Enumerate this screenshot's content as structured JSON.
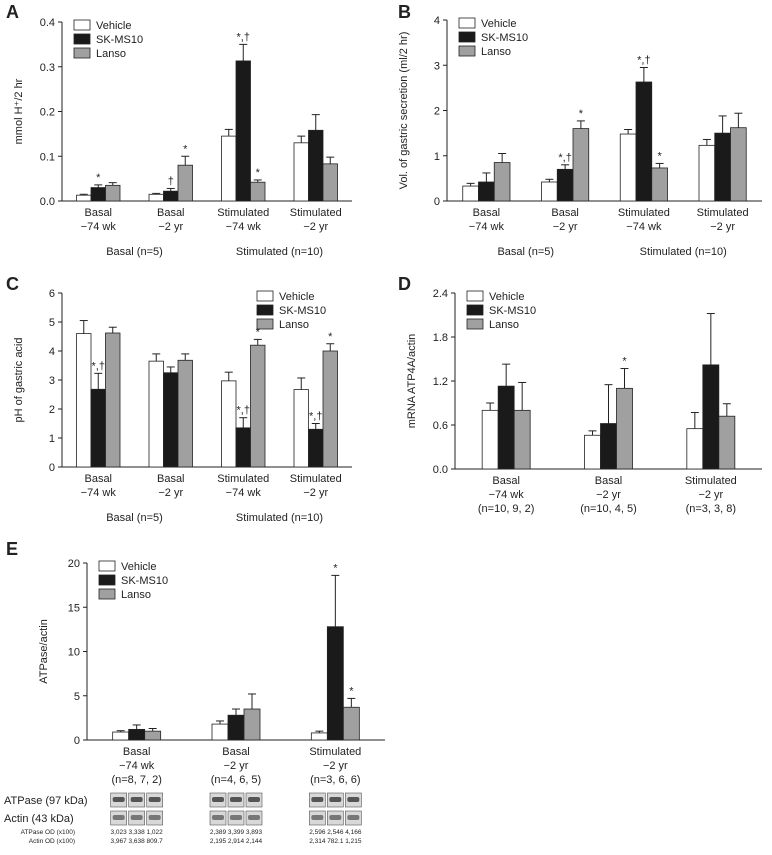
{
  "chart_data": [
    {
      "type": "bar",
      "panel": "A",
      "ylabel": "mmol H⁺/2 hr",
      "legend": "upper left",
      "categories": [
        [
          "Basal",
          "−74 wk"
        ],
        [
          "Basal",
          "−2 yr"
        ],
        [
          "Stimulated",
          "−74 wk"
        ],
        [
          "Stimulated",
          "−2 yr"
        ]
      ],
      "groups": [
        "Basal (n=5)",
        "Stimulated (n=10)"
      ],
      "ylim": [
        0,
        0.4
      ],
      "yticks": [
        {
          "value": 0,
          "label": "0.0"
        },
        0.1,
        0.2,
        0.3,
        0.4
      ],
      "series": [
        {
          "name": "Vehicle",
          "color": "#ffffff",
          "values": [
            0.013,
            0.015,
            0.145,
            0.13
          ],
          "errors": [
            0.002,
            0.002,
            0.015,
            0.015
          ],
          "marks": [
            null,
            null,
            null,
            null
          ]
        },
        {
          "name": "SK-MS10",
          "color": "#1a1a1a",
          "values": [
            0.03,
            0.022,
            0.313,
            0.158
          ],
          "errors": [
            0.006,
            0.006,
            0.037,
            0.035
          ],
          "marks": [
            "*",
            "†",
            "*,†",
            null
          ]
        },
        {
          "name": "Lanso",
          "color": "#a0a0a0",
          "values": [
            0.035,
            0.08,
            0.042,
            0.083
          ],
          "errors": [
            0.006,
            0.02,
            0.005,
            0.015
          ],
          "marks": [
            null,
            "*",
            "*",
            null
          ]
        }
      ]
    },
    {
      "type": "bar",
      "panel": "B",
      "ylabel": "Vol. of gastric secretion (ml/2 hr)",
      "legend": "upper left",
      "categories": [
        [
          "Basal",
          "−74 wk"
        ],
        [
          "Basal",
          "−2 yr"
        ],
        [
          "Stimulated",
          "−74 wk"
        ],
        [
          "Stimulated",
          "−2 yr"
        ]
      ],
      "groups": [
        "Basal (n=5)",
        "Stimulated (n=10)"
      ],
      "ylim": [
        0,
        4
      ],
      "yticks": [
        0,
        1,
        2,
        3,
        4
      ],
      "series": [
        {
          "name": "Vehicle",
          "color": "#ffffff",
          "values": [
            0.33,
            0.42,
            1.48,
            1.23
          ],
          "errors": [
            0.06,
            0.06,
            0.1,
            0.13
          ],
          "marks": [
            null,
            null,
            null,
            null
          ]
        },
        {
          "name": "SK-MS10",
          "color": "#1a1a1a",
          "values": [
            0.42,
            0.7,
            2.63,
            1.5
          ],
          "errors": [
            0.2,
            0.1,
            0.32,
            0.38
          ],
          "marks": [
            null,
            "*,†",
            "*,†",
            null
          ]
        },
        {
          "name": "Lanso",
          "color": "#a0a0a0",
          "values": [
            0.85,
            1.6,
            0.73,
            1.62
          ],
          "errors": [
            0.2,
            0.17,
            0.1,
            0.32
          ],
          "marks": [
            null,
            "*",
            "*",
            null
          ]
        }
      ]
    },
    {
      "type": "bar",
      "panel": "C",
      "ylabel": "pH of gastric acid",
      "legend": "upper right",
      "categories": [
        [
          "Basal",
          "−74 wk"
        ],
        [
          "Basal",
          "−2 yr"
        ],
        [
          "Stimulated",
          "−74 wk"
        ],
        [
          "Stimulated",
          "−2 yr"
        ]
      ],
      "groups": [
        "Basal (n=5)",
        "Stimulated (n=10)"
      ],
      "ylim": [
        0,
        6
      ],
      "yticks": [
        0,
        1,
        2,
        3,
        4,
        5,
        6
      ],
      "series": [
        {
          "name": "Vehicle",
          "color": "#ffffff",
          "values": [
            4.6,
            3.65,
            2.97,
            2.67
          ],
          "errors": [
            0.45,
            0.25,
            0.3,
            0.4
          ],
          "marks": [
            null,
            null,
            null,
            null
          ]
        },
        {
          "name": "SK-MS10",
          "color": "#1a1a1a",
          "values": [
            2.68,
            3.25,
            1.35,
            1.3
          ],
          "errors": [
            0.55,
            0.2,
            0.35,
            0.2
          ],
          "marks": [
            "*,†",
            null,
            "*,†",
            "*,†"
          ]
        },
        {
          "name": "Lanso",
          "color": "#a0a0a0",
          "values": [
            4.62,
            3.68,
            4.2,
            4.0
          ],
          "errors": [
            0.2,
            0.22,
            0.2,
            0.25
          ],
          "marks": [
            null,
            null,
            "*",
            "*"
          ]
        }
      ]
    },
    {
      "type": "bar",
      "panel": "D",
      "ylabel": "mRNA ATP4A/actin",
      "legend": "upper left",
      "categories": [
        [
          "Basal",
          "−74 wk",
          "(n=10, 9, 2)"
        ],
        [
          "Basal",
          "−2 yr",
          "(n=10, 4, 5)"
        ],
        [
          "Stimulated",
          "−2 yr",
          "(n=3, 3, 8)"
        ]
      ],
      "ylim": [
        0,
        2.4
      ],
      "yticks": [
        {
          "value": 0,
          "label": "0.0"
        },
        0.6,
        1.2,
        1.8,
        2.4
      ],
      "series": [
        {
          "name": "Vehicle",
          "color": "#ffffff",
          "values": [
            0.8,
            0.46,
            0.55
          ],
          "errors": [
            0.1,
            0.06,
            0.22
          ],
          "marks": [
            null,
            null,
            null
          ]
        },
        {
          "name": "SK-MS10",
          "color": "#1a1a1a",
          "values": [
            1.13,
            0.62,
            1.42
          ],
          "errors": [
            0.3,
            0.53,
            0.7
          ],
          "marks": [
            null,
            null,
            null
          ]
        },
        {
          "name": "Lanso",
          "color": "#a0a0a0",
          "values": [
            0.8,
            1.1,
            0.72
          ],
          "errors": [
            0.38,
            0.27,
            0.17
          ],
          "marks": [
            null,
            "*",
            null
          ]
        }
      ]
    },
    {
      "type": "bar",
      "panel": "E",
      "ylabel": "ATPase/actin",
      "legend": "upper left",
      "categories": [
        [
          "Basal",
          "−74 wk",
          "(n=8, 7, 2)"
        ],
        [
          "Basal",
          "−2 yr",
          "(n=4, 6, 5)"
        ],
        [
          "Stimulated",
          "−2 yr",
          "(n=3, 6, 6)"
        ]
      ],
      "ylim": [
        0,
        20
      ],
      "yticks": [
        0,
        5,
        10,
        15,
        20
      ],
      "series": [
        {
          "name": "Vehicle",
          "color": "#ffffff",
          "values": [
            0.9,
            1.8,
            0.8
          ],
          "errors": [
            0.15,
            0.35,
            0.2
          ],
          "marks": [
            null,
            null,
            null
          ]
        },
        {
          "name": "SK-MS10",
          "color": "#1a1a1a",
          "values": [
            1.2,
            2.8,
            12.8
          ],
          "errors": [
            0.5,
            0.7,
            5.8
          ],
          "marks": [
            null,
            null,
            "*"
          ]
        },
        {
          "name": "Lanso",
          "color": "#a0a0a0",
          "values": [
            1.0,
            3.5,
            3.7
          ],
          "errors": [
            0.3,
            1.7,
            1.0
          ],
          "marks": [
            null,
            null,
            "*"
          ]
        }
      ],
      "blot": {
        "bands": [
          "ATPase (97 kDa)",
          "Actin (43 kDa)"
        ],
        "od_names": [
          "ATPase OD (x100)",
          "Actin OD (x100)"
        ],
        "atpase_od": [
          "3,023",
          "3,338",
          "1,022",
          "2,389",
          "3,399",
          "3,893",
          "2,596",
          "2,546",
          "4,166"
        ],
        "actin_od": [
          "3,967",
          "3,638",
          "809.7",
          "2,195",
          "2,914",
          "2,144",
          "2,314",
          "782.1",
          "1,215"
        ]
      }
    }
  ]
}
